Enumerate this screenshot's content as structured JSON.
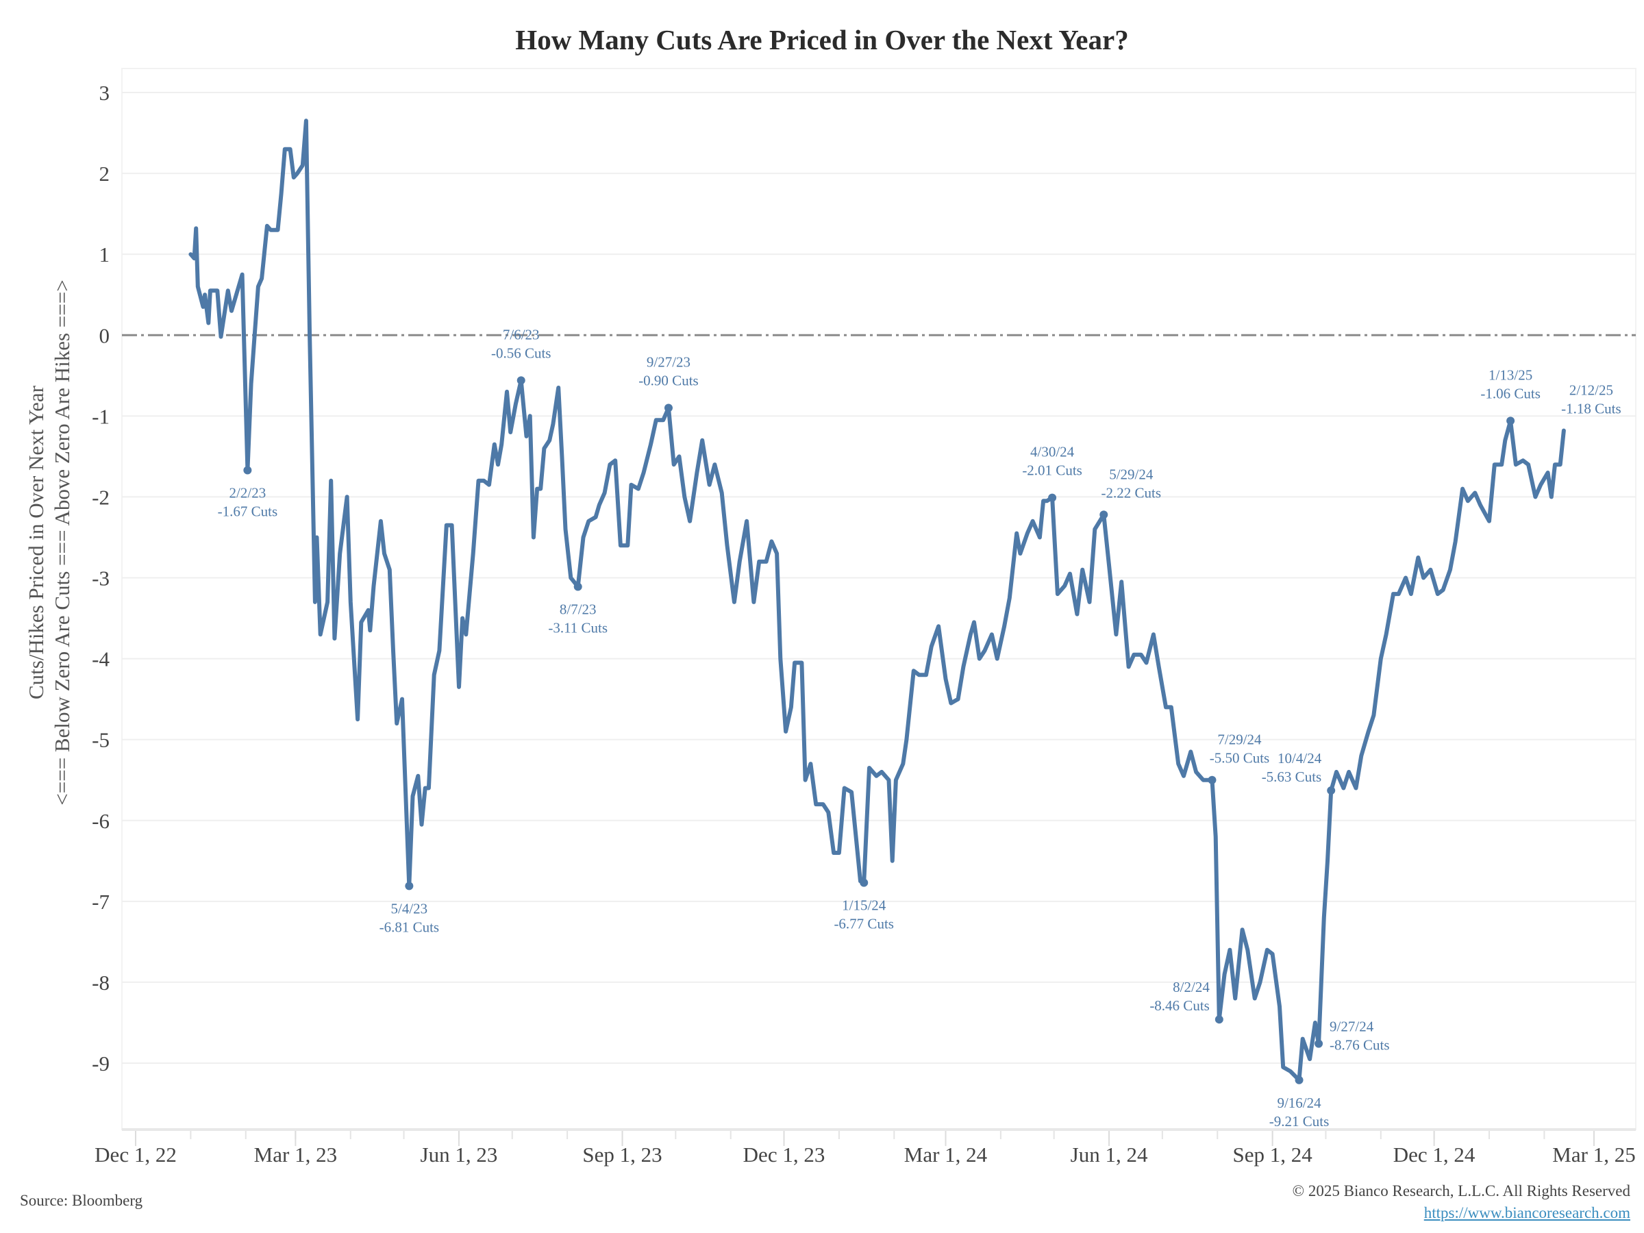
{
  "chart_data": {
    "type": "line",
    "title": "How Many Cuts Are Priced in Over the Next Year?",
    "ylabel": [
      "Cuts/Hikes Priced in Over Next Year",
      "<=== Below Zero Are Cuts === Above Zero Are Hikes ===>"
    ],
    "xlabel": "",
    "ylim": [
      -9.8,
      3.3
    ],
    "xlim": [
      "2022-11-20",
      "2025-03-15"
    ],
    "yticks": [
      3,
      2,
      1,
      0,
      -1,
      -2,
      -3,
      -4,
      -5,
      -6,
      -7,
      -8,
      -9
    ],
    "xticks": [
      {
        "date": "2022-12-01",
        "label": "Dec 1, 22"
      },
      {
        "date": "2023-03-01",
        "label": "Mar 1, 23"
      },
      {
        "date": "2023-06-01",
        "label": "Jun 1, 23"
      },
      {
        "date": "2023-09-01",
        "label": "Sep 1, 23"
      },
      {
        "date": "2023-12-01",
        "label": "Dec 1, 23"
      },
      {
        "date": "2024-03-01",
        "label": "Mar 1, 24"
      },
      {
        "date": "2024-06-01",
        "label": "Jun 1, 24"
      },
      {
        "date": "2024-09-01",
        "label": "Sep 1, 24"
      },
      {
        "date": "2024-12-01",
        "label": "Dec 1, 24"
      },
      {
        "date": "2025-03-01",
        "label": "Mar 1, 25"
      }
    ],
    "grid": true,
    "reference_line": {
      "y": 0,
      "style": "dashed"
    },
    "line_color": "#4e79a7",
    "series": [
      {
        "x": [
          "2023-01-01",
          "2023-01-03",
          "2023-01-04",
          "2023-01-05",
          "2023-01-08",
          "2023-01-09",
          "2023-01-11",
          "2023-01-12",
          "2023-01-16",
          "2023-01-18",
          "2023-01-22",
          "2023-01-24",
          "2023-01-30",
          "2023-02-02",
          "2023-02-04",
          "2023-02-06",
          "2023-02-08",
          "2023-02-10",
          "2023-02-13",
          "2023-02-15",
          "2023-02-19",
          "2023-02-21",
          "2023-02-23",
          "2023-02-26",
          "2023-02-28",
          "2023-03-02",
          "2023-03-05",
          "2023-03-07",
          "2023-03-09",
          "2023-03-12",
          "2023-03-13",
          "2023-03-15",
          "2023-03-19",
          "2023-03-21",
          "2023-03-23",
          "2023-03-26",
          "2023-03-30",
          "2023-04-01",
          "2023-04-05",
          "2023-04-07",
          "2023-04-11",
          "2023-04-12",
          "2023-04-14",
          "2023-04-18",
          "2023-04-20",
          "2023-04-23",
          "2023-04-25",
          "2023-04-27",
          "2023-04-30",
          "2023-05-04",
          "2023-05-06",
          "2023-05-09",
          "2023-05-11",
          "2023-05-13",
          "2023-05-15",
          "2023-05-18",
          "2023-05-21",
          "2023-05-25",
          "2023-05-28",
          "2023-06-01",
          "2023-06-03",
          "2023-06-05",
          "2023-06-09",
          "2023-06-12",
          "2023-06-15",
          "2023-06-18",
          "2023-06-21",
          "2023-06-23",
          "2023-06-25",
          "2023-06-28",
          "2023-06-30",
          "2023-07-03",
          "2023-07-06",
          "2023-07-09",
          "2023-07-11",
          "2023-07-13",
          "2023-07-15",
          "2023-07-17",
          "2023-07-19",
          "2023-07-22",
          "2023-07-24",
          "2023-07-27",
          "2023-07-29",
          "2023-07-31",
          "2023-08-03",
          "2023-08-07",
          "2023-08-10",
          "2023-08-13",
          "2023-08-17",
          "2023-08-19",
          "2023-08-22",
          "2023-08-25",
          "2023-08-28",
          "2023-08-31",
          "2023-09-04",
          "2023-09-06",
          "2023-09-10",
          "2023-09-13",
          "2023-09-17",
          "2023-09-20",
          "2023-09-24",
          "2023-09-27",
          "2023-09-30",
          "2023-10-03",
          "2023-10-06",
          "2023-10-09",
          "2023-10-13",
          "2023-10-16",
          "2023-10-20",
          "2023-10-23",
          "2023-10-27",
          "2023-10-30",
          "2023-11-03",
          "2023-11-06",
          "2023-11-10",
          "2023-11-14",
          "2023-11-17",
          "2023-11-21",
          "2023-11-24",
          "2023-11-27",
          "2023-11-29",
          "2023-12-02",
          "2023-12-05",
          "2023-12-07",
          "2023-12-11",
          "2023-12-13",
          "2023-12-16",
          "2023-12-19",
          "2023-12-23",
          "2023-12-26",
          "2023-12-29",
          "2024-01-01",
          "2024-01-04",
          "2024-01-08",
          "2024-01-13",
          "2024-01-15",
          "2024-01-18",
          "2024-01-22",
          "2024-01-25",
          "2024-01-29",
          "2024-01-31",
          "2024-02-02",
          "2024-02-06",
          "2024-02-08",
          "2024-02-12",
          "2024-02-15",
          "2024-02-19",
          "2024-02-22",
          "2024-02-26",
          "2024-03-01",
          "2024-03-04",
          "2024-03-08",
          "2024-03-11",
          "2024-03-15",
          "2024-03-17",
          "2024-03-20",
          "2024-03-23",
          "2024-03-27",
          "2024-03-30",
          "2024-04-03",
          "2024-04-06",
          "2024-04-10",
          "2024-04-12",
          "2024-04-16",
          "2024-04-19",
          "2024-04-23",
          "2024-04-25",
          "2024-04-27",
          "2024-04-30",
          "2024-05-03",
          "2024-05-07",
          "2024-05-10",
          "2024-05-14",
          "2024-05-17",
          "2024-05-21",
          "2024-05-24",
          "2024-05-29",
          "2024-06-01",
          "2024-06-05",
          "2024-06-08",
          "2024-06-12",
          "2024-06-15",
          "2024-06-19",
          "2024-06-22",
          "2024-06-26",
          "2024-06-29",
          "2024-07-03",
          "2024-07-06",
          "2024-07-10",
          "2024-07-13",
          "2024-07-17",
          "2024-07-20",
          "2024-07-24",
          "2024-07-29",
          "2024-07-31",
          "2024-08-02",
          "2024-08-05",
          "2024-08-08",
          "2024-08-11",
          "2024-08-15",
          "2024-08-18",
          "2024-08-22",
          "2024-08-25",
          "2024-08-29",
          "2024-09-01",
          "2024-09-05",
          "2024-09-07",
          "2024-09-11",
          "2024-09-16",
          "2024-09-18",
          "2024-09-22",
          "2024-09-25",
          "2024-09-27",
          "2024-09-30",
          "2024-10-02",
          "2024-10-04",
          "2024-10-07",
          "2024-10-11",
          "2024-10-14",
          "2024-10-18",
          "2024-10-21",
          "2024-10-25",
          "2024-10-28",
          "2024-11-01",
          "2024-11-04",
          "2024-11-08",
          "2024-11-11",
          "2024-11-15",
          "2024-11-18",
          "2024-11-22",
          "2024-11-25",
          "2024-11-29",
          "2024-12-03",
          "2024-12-06",
          "2024-12-10",
          "2024-12-13",
          "2024-12-17",
          "2024-12-20",
          "2024-12-24",
          "2024-12-27",
          "2025-01-01",
          "2025-01-04",
          "2025-01-08",
          "2025-01-10",
          "2025-01-13",
          "2025-01-16",
          "2025-01-20",
          "2025-01-23",
          "2025-01-27",
          "2025-01-30",
          "2025-02-03",
          "2025-02-05",
          "2025-02-07",
          "2025-02-10",
          "2025-02-12"
        ],
        "y": [
          1.0,
          0.95,
          1.32,
          0.6,
          0.35,
          0.5,
          0.15,
          0.55,
          0.55,
          -0.02,
          0.55,
          0.3,
          0.75,
          -1.67,
          -0.6,
          0.0,
          0.6,
          0.7,
          1.35,
          1.3,
          1.3,
          1.75,
          2.3,
          2.3,
          1.95,
          2.0,
          2.1,
          2.65,
          0.0,
          -3.3,
          -2.5,
          -3.7,
          -3.3,
          -1.8,
          -3.75,
          -2.7,
          -2.0,
          -3.3,
          -4.75,
          -3.55,
          -3.4,
          -3.65,
          -3.1,
          -2.3,
          -2.7,
          -2.9,
          -3.9,
          -4.8,
          -4.5,
          -6.81,
          -5.7,
          -5.45,
          -6.05,
          -5.6,
          -5.6,
          -4.2,
          -3.9,
          -2.35,
          -2.35,
          -4.35,
          -3.5,
          -3.7,
          -2.7,
          -1.8,
          -1.8,
          -1.85,
          -1.35,
          -1.6,
          -1.35,
          -0.7,
          -1.2,
          -0.85,
          -0.56,
          -1.25,
          -1.0,
          -2.5,
          -1.9,
          -1.9,
          -1.4,
          -1.3,
          -1.1,
          -0.65,
          -1.5,
          -2.4,
          -3.0,
          -3.11,
          -2.5,
          -2.3,
          -2.25,
          -2.1,
          -1.95,
          -1.6,
          -1.55,
          -2.6,
          -2.6,
          -1.85,
          -1.9,
          -1.7,
          -1.35,
          -1.05,
          -1.05,
          -0.9,
          -1.6,
          -1.5,
          -2.0,
          -2.3,
          -1.7,
          -1.3,
          -1.85,
          -1.6,
          -1.95,
          -2.6,
          -3.3,
          -2.8,
          -2.3,
          -3.3,
          -2.8,
          -2.8,
          -2.55,
          -2.7,
          -4.0,
          -4.9,
          -4.6,
          -4.05,
          -4.05,
          -5.5,
          -5.3,
          -5.8,
          -5.8,
          -5.9,
          -6.4,
          -6.4,
          -5.6,
          -5.65,
          -6.75,
          -6.77,
          -5.35,
          -5.45,
          -5.4,
          -5.5,
          -6.5,
          -5.5,
          -5.3,
          -5.0,
          -4.15,
          -4.2,
          -4.2,
          -3.85,
          -3.6,
          -4.25,
          -4.55,
          -4.5,
          -4.1,
          -3.7,
          -3.55,
          -4.0,
          -3.9,
          -3.7,
          -4.0,
          -3.6,
          -3.25,
          -2.45,
          -2.7,
          -2.45,
          -2.3,
          -2.5,
          -2.05,
          -2.05,
          -2.01,
          -3.2,
          -3.1,
          -2.95,
          -3.45,
          -2.9,
          -3.3,
          -2.4,
          -2.22,
          -2.85,
          -3.7,
          -3.05,
          -4.1,
          -3.95,
          -3.95,
          -4.05,
          -3.7,
          -4.1,
          -4.6,
          -4.6,
          -5.3,
          -5.45,
          -5.15,
          -5.4,
          -5.5,
          -5.5,
          -6.2,
          -8.46,
          -7.9,
          -7.6,
          -8.2,
          -7.35,
          -7.6,
          -8.2,
          -8.0,
          -7.6,
          -7.65,
          -8.3,
          -9.05,
          -9.1,
          -9.21,
          -8.7,
          -8.95,
          -8.5,
          -8.76,
          -7.2,
          -6.5,
          -5.63,
          -5.4,
          -5.6,
          -5.4,
          -5.6,
          -5.2,
          -4.9,
          -4.7,
          -4.0,
          -3.7,
          -3.2,
          -3.2,
          -3.0,
          -3.2,
          -2.75,
          -3.0,
          -2.9,
          -3.2,
          -3.15,
          -2.9,
          -2.55,
          -1.9,
          -2.05,
          -1.95,
          -2.1,
          -2.3,
          -1.6,
          -1.6,
          -1.3,
          -1.06,
          -1.6,
          -1.55,
          -1.6,
          -2.0,
          -1.85,
          -1.7,
          -2.0,
          -1.6,
          -1.6,
          -1.18
        ]
      }
    ],
    "annotations": [
      {
        "date": "2023-02-02",
        "value": -1.67,
        "label_date": "2/2/23",
        "label_value": "-1.67 Cuts",
        "placement": "below",
        "marker": true
      },
      {
        "date": "2023-05-04",
        "value": -6.81,
        "label_date": "5/4/23",
        "label_value": "-6.81 Cuts",
        "placement": "below",
        "marker": true
      },
      {
        "date": "2023-07-06",
        "value": -0.56,
        "label_date": "7/6/23",
        "label_value": "-0.56 Cuts",
        "placement": "above",
        "marker": true
      },
      {
        "date": "2023-08-07",
        "value": -3.11,
        "label_date": "8/7/23",
        "label_value": "-3.11 Cuts",
        "placement": "below",
        "marker": true
      },
      {
        "date": "2023-09-27",
        "value": -0.9,
        "label_date": "9/27/23",
        "label_value": "-0.90 Cuts",
        "placement": "above",
        "marker": true
      },
      {
        "date": "2024-01-15",
        "value": -6.77,
        "label_date": "1/15/24",
        "label_value": "-6.77 Cuts",
        "placement": "below",
        "marker": true
      },
      {
        "date": "2024-04-30",
        "value": -2.01,
        "label_date": "4/30/24",
        "label_value": "-2.01 Cuts",
        "placement": "above",
        "marker": true
      },
      {
        "date": "2024-05-29",
        "value": -2.22,
        "label_date": "5/29/24",
        "label_value": "-2.22 Cuts",
        "placement": "above-right",
        "marker": true
      },
      {
        "date": "2024-07-29",
        "value": -5.5,
        "label_date": "7/29/24",
        "label_value": "-5.50 Cuts",
        "placement": "above-right",
        "marker": true
      },
      {
        "date": "2024-08-02",
        "value": -8.46,
        "label_date": "8/2/24",
        "label_value": "-8.46 Cuts",
        "placement": "left",
        "marker": true
      },
      {
        "date": "2024-09-16",
        "value": -9.21,
        "label_date": "9/16/24",
        "label_value": "-9.21 Cuts",
        "placement": "below",
        "marker": true
      },
      {
        "date": "2024-09-27",
        "value": -8.76,
        "label_date": "9/27/24",
        "label_value": "-8.76 Cuts",
        "placement": "right",
        "marker": true
      },
      {
        "date": "2024-10-04",
        "value": -5.63,
        "label_date": "10/4/24",
        "label_value": "-5.63 Cuts",
        "placement": "left",
        "marker": true
      },
      {
        "date": "2025-01-13",
        "value": -1.06,
        "label_date": "1/13/25",
        "label_value": "-1.06 Cuts",
        "placement": "above",
        "marker": true
      },
      {
        "date": "2025-02-12",
        "value": -1.18,
        "label_date": "2/12/25",
        "label_value": "-1.18 Cuts",
        "placement": "above-right",
        "marker": false
      }
    ]
  },
  "footer": {
    "source": "Source: Bloomberg",
    "copyright": "© 2025 Bianco Research, L.L.C. All Rights Reserved",
    "url": "https://www.biancoresearch.com"
  }
}
